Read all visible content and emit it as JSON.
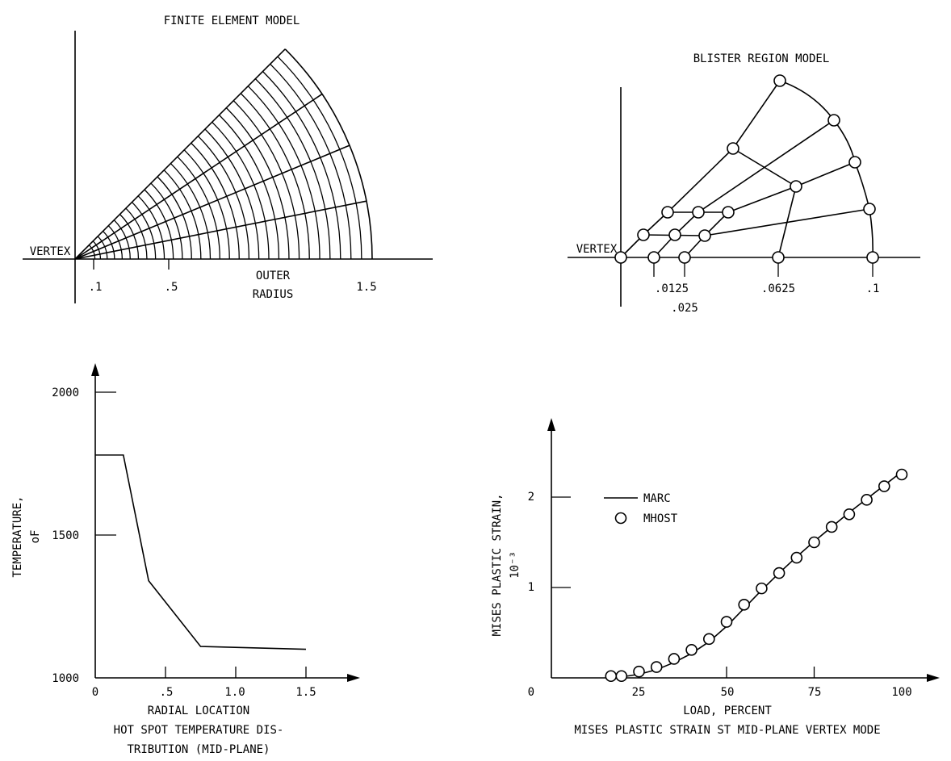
{
  "fem": {
    "title": "FINITE ELEMENT MODEL",
    "vertex_label": "VERTEX",
    "ticks": [
      ".1",
      ".5",
      "1.5"
    ],
    "outer_label_1": "OUTER",
    "outer_label_2": "RADIUS"
  },
  "blister": {
    "title": "BLISTER REGION MODEL",
    "vertex_label": "VERTEX",
    "ticks": [
      ".0125",
      ".025",
      ".0625",
      ".1"
    ]
  },
  "temp_plot": {
    "ylabel_1": "TEMPERATURE,",
    "ylabel_2": "oF",
    "xlabel": "RADIAL LOCATION",
    "caption_1": "HOT SPOT TEMPERATURE DIS-",
    "caption_2": "TRIBUTION (MID-PLANE)",
    "yticks": [
      "2000",
      "1500",
      "1000"
    ],
    "xticks": [
      "0",
      ".5",
      "1.0",
      "1.5"
    ]
  },
  "strain_plot": {
    "ylabel_1": "MISES PLASTIC STRAIN,",
    "ylabel_2": "10⁻³",
    "xlabel": "LOAD, PERCENT",
    "caption": "MISES PLASTIC STRAIN ST MID-PLANE VERTEX MODE",
    "yticks": [
      "2",
      "1",
      "0"
    ],
    "xticks": [
      "25",
      "50",
      "75",
      "100"
    ],
    "legend": [
      "MARC",
      "MHOST"
    ]
  },
  "chart_data": [
    {
      "type": "line",
      "xlabel": "RADIAL LOCATION",
      "ylabel": "TEMPERATURE, oF",
      "xlim": [
        0,
        1.8
      ],
      "ylim": [
        1000,
        2100
      ],
      "series": [
        {
          "x": [
            0,
            0.2,
            0.38,
            0.75,
            1.5
          ],
          "y": [
            1780,
            1780,
            1340,
            1110,
            1100
          ]
        }
      ]
    },
    {
      "type": "line",
      "xlabel": "LOAD, PERCENT",
      "ylabel": "MISES PLASTIC STRAIN, 10⁻³",
      "xlim": [
        0,
        115
      ],
      "ylim": [
        0,
        2.7
      ],
      "series": [
        {
          "name": "MARC",
          "x": [
            16,
            20,
            25,
            30,
            35,
            40,
            45,
            50,
            55,
            60,
            65,
            70,
            75,
            80,
            85,
            90,
            95,
            100
          ],
          "y": [
            0.0,
            0.01,
            0.04,
            0.09,
            0.17,
            0.27,
            0.4,
            0.57,
            0.77,
            0.97,
            1.16,
            1.34,
            1.51,
            1.67,
            1.83,
            1.98,
            2.13,
            2.28
          ]
        },
        {
          "name": "MHOST",
          "x": [
            17,
            20,
            25,
            30,
            35,
            40,
            45,
            50,
            55,
            60,
            65,
            70,
            75,
            80,
            85,
            90,
            95,
            100
          ],
          "y": [
            0.02,
            0.02,
            0.07,
            0.12,
            0.21,
            0.31,
            0.43,
            0.62,
            0.81,
            0.99,
            1.16,
            1.33,
            1.5,
            1.67,
            1.81,
            1.97,
            2.12,
            2.25
          ]
        }
      ]
    }
  ]
}
